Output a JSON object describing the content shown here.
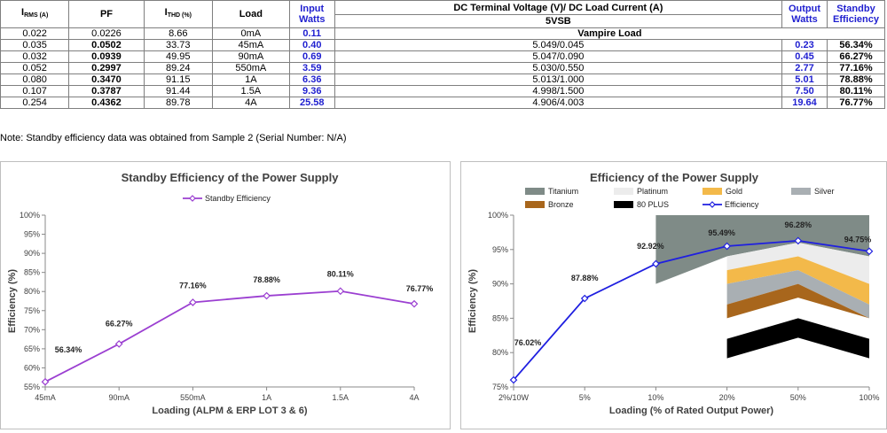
{
  "table": {
    "headers": {
      "irms_main": "I",
      "irms_sub": "RMS (A)",
      "pf": "PF",
      "ithd_main": "I",
      "ithd_sub": "THD (%)",
      "load": "Load",
      "input_watts": "Input Watts",
      "dc_header": "DC Terminal Voltage (V)/ DC Load Current (A)",
      "rail": "5VSB",
      "output_watts": "Output Watts",
      "standby_eff": "Standby Efficiency"
    },
    "vampire_row": {
      "irms": "0.022",
      "pf": "0.0226",
      "ithd": "8.66",
      "load": "0mA",
      "input": "0.11",
      "label": "Vampire Load"
    },
    "rows": [
      {
        "irms": "0.035",
        "pf": "0.0502",
        "ithd": "33.73",
        "load": "45mA",
        "input": "0.40",
        "dc": "5.049/0.045",
        "output": "0.23",
        "eff": "56.34%"
      },
      {
        "irms": "0.032",
        "pf": "0.0939",
        "ithd": "49.95",
        "load": "90mA",
        "input": "0.69",
        "dc": "5.047/0.090",
        "output": "0.45",
        "eff": "66.27%"
      },
      {
        "irms": "0.052",
        "pf": "0.2997",
        "ithd": "89.24",
        "load": "550mA",
        "input": "3.59",
        "dc": "5.030/0.550",
        "output": "2.77",
        "eff": "77.16%"
      },
      {
        "irms": "0.080",
        "pf": "0.3470",
        "ithd": "91.15",
        "load": "1A",
        "input": "6.36",
        "dc": "5.013/1.000",
        "output": "5.01",
        "eff": "78.88%"
      },
      {
        "irms": "0.107",
        "pf": "0.3787",
        "ithd": "91.44",
        "load": "1.5A",
        "input": "9.36",
        "dc": "4.998/1.500",
        "output": "7.50",
        "eff": "80.11%"
      },
      {
        "irms": "0.254",
        "pf": "0.4362",
        "ithd": "89.78",
        "load": "4A",
        "input": "25.58",
        "dc": "4.906/4.003",
        "output": "19.64",
        "eff": "76.77%"
      }
    ]
  },
  "note": "Note: Standby efficiency data was obtained from Sample 2 (Serial Number: N/A)",
  "chart_data": [
    {
      "type": "line",
      "title": "Standby Efficiency of the Power Supply",
      "xlabel": "Loading (ALPM & ERP LOT 3 & 6)",
      "ylabel": "Efficiency (%)",
      "ylim": [
        55,
        100
      ],
      "yticks": [
        "55%",
        "60%",
        "65%",
        "70%",
        "75%",
        "80%",
        "85%",
        "90%",
        "95%",
        "100%"
      ],
      "categories": [
        "45mA",
        "90mA",
        "550mA",
        "1A",
        "1.5A",
        "4A"
      ],
      "series": [
        {
          "name": "Standby Efficiency",
          "color": "#9b3fd1",
          "values": [
            56.34,
            66.27,
            77.16,
            78.88,
            80.11,
            76.77
          ],
          "labels": [
            "56.34%",
            "66.27%",
            "77.16%",
            "78.88%",
            "80.11%",
            "76.77%"
          ]
        }
      ],
      "legend": "top",
      "grid": false
    },
    {
      "type": "line",
      "title": "Efficiency of the Power Supply",
      "xlabel": "Loading (% of Rated Output Power)",
      "ylabel": "Efficiency (%)",
      "ylim": [
        75,
        100
      ],
      "yticks": [
        "75%",
        "80%",
        "85%",
        "90%",
        "95%",
        "100%"
      ],
      "categories": [
        "2%/10W",
        "5%",
        "10%",
        "20%",
        "50%",
        "100%"
      ],
      "series": [
        {
          "name": "Efficiency",
          "color": "#1f1fe0",
          "values": [
            76.02,
            87.88,
            92.92,
            95.49,
            96.28,
            94.75
          ],
          "labels": [
            "76.02%",
            "87.88%",
            "92.92%",
            "95.49%",
            "96.28%",
            "94.75%"
          ]
        }
      ],
      "certification_bands": [
        {
          "name": "Titanium",
          "color": "#7f8b87",
          "values": [
            null,
            null,
            90,
            94,
            96,
            94
          ]
        },
        {
          "name": "Platinum",
          "color": "#ececec",
          "values": [
            null,
            null,
            null,
            92,
            94,
            90
          ]
        },
        {
          "name": "Gold",
          "color": "#f3b94a",
          "values": [
            null,
            null,
            null,
            90,
            92,
            87
          ]
        },
        {
          "name": "Silver",
          "color": "#a9afb3",
          "values": [
            null,
            null,
            null,
            87,
            90,
            85
          ]
        },
        {
          "name": "Bronze",
          "color": "#a8661c",
          "values": [
            null,
            null,
            null,
            85,
            88,
            85
          ]
        },
        {
          "name": "80 PLUS",
          "color": "#000000",
          "values": [
            null,
            null,
            null,
            82,
            85,
            82
          ]
        }
      ],
      "legend": "top",
      "grid": false
    }
  ]
}
